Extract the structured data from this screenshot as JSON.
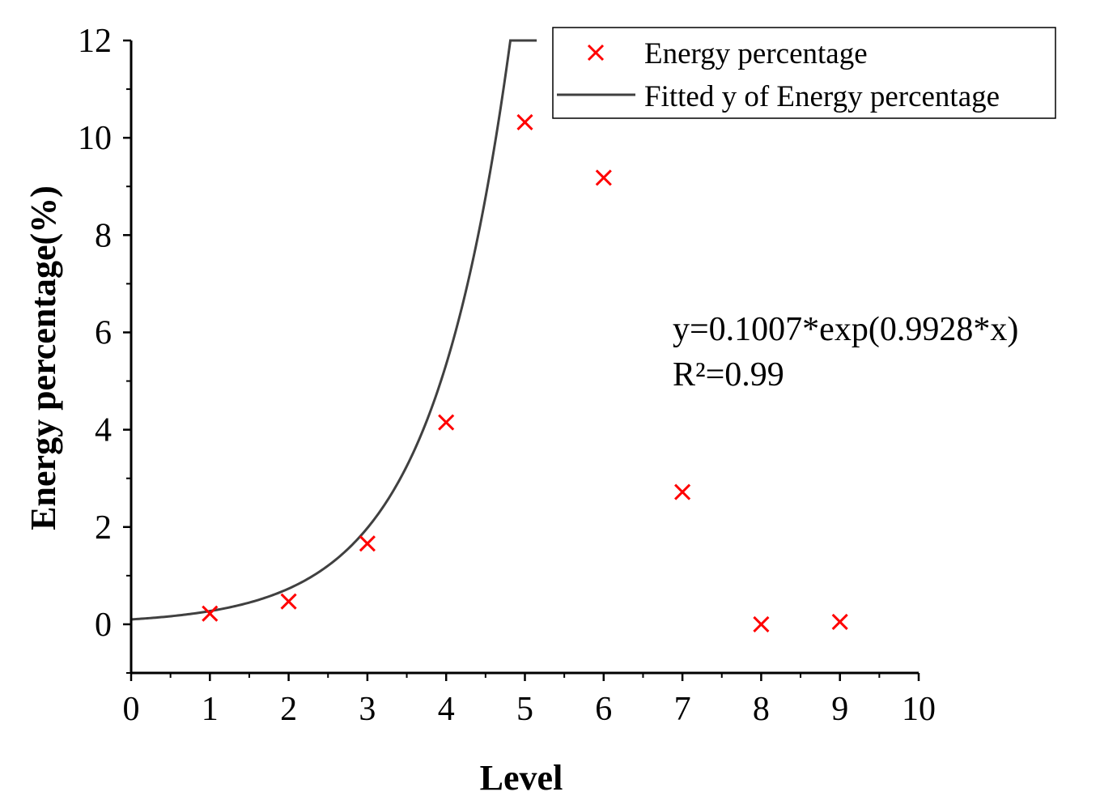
{
  "chart_data": {
    "type": "scatter",
    "title": "",
    "xlabel": "Level",
    "ylabel": "Energy percentage(%)",
    "xlim": [
      0,
      10
    ],
    "ylim": [
      -1,
      12
    ],
    "x_ticks": [
      "0",
      "1",
      "2",
      "3",
      "4",
      "5",
      "6",
      "7",
      "8",
      "9",
      "10"
    ],
    "y_ticks": [
      "0",
      "2",
      "4",
      "6",
      "8",
      "10",
      "12"
    ],
    "grid": false,
    "legend_position": "top-right",
    "series": [
      {
        "name": "Energy percentage",
        "kind": "scatter",
        "marker": "x",
        "color": "#ff0000",
        "x": [
          1,
          2,
          3,
          4,
          5,
          6,
          7,
          8,
          9
        ],
        "y": [
          0.22,
          0.47,
          1.66,
          4.15,
          10.32,
          9.18,
          2.72,
          0.0,
          0.05
        ]
      },
      {
        "name": "Fitted y of Energy percentage",
        "kind": "line",
        "color": "#404040",
        "fit": {
          "a": 0.1007,
          "b": 0.9928,
          "x_range": [
            0,
            5.15
          ]
        }
      }
    ],
    "annotations": [
      "y=0.1007*exp(0.9928*x)",
      "R²=0.99"
    ]
  }
}
